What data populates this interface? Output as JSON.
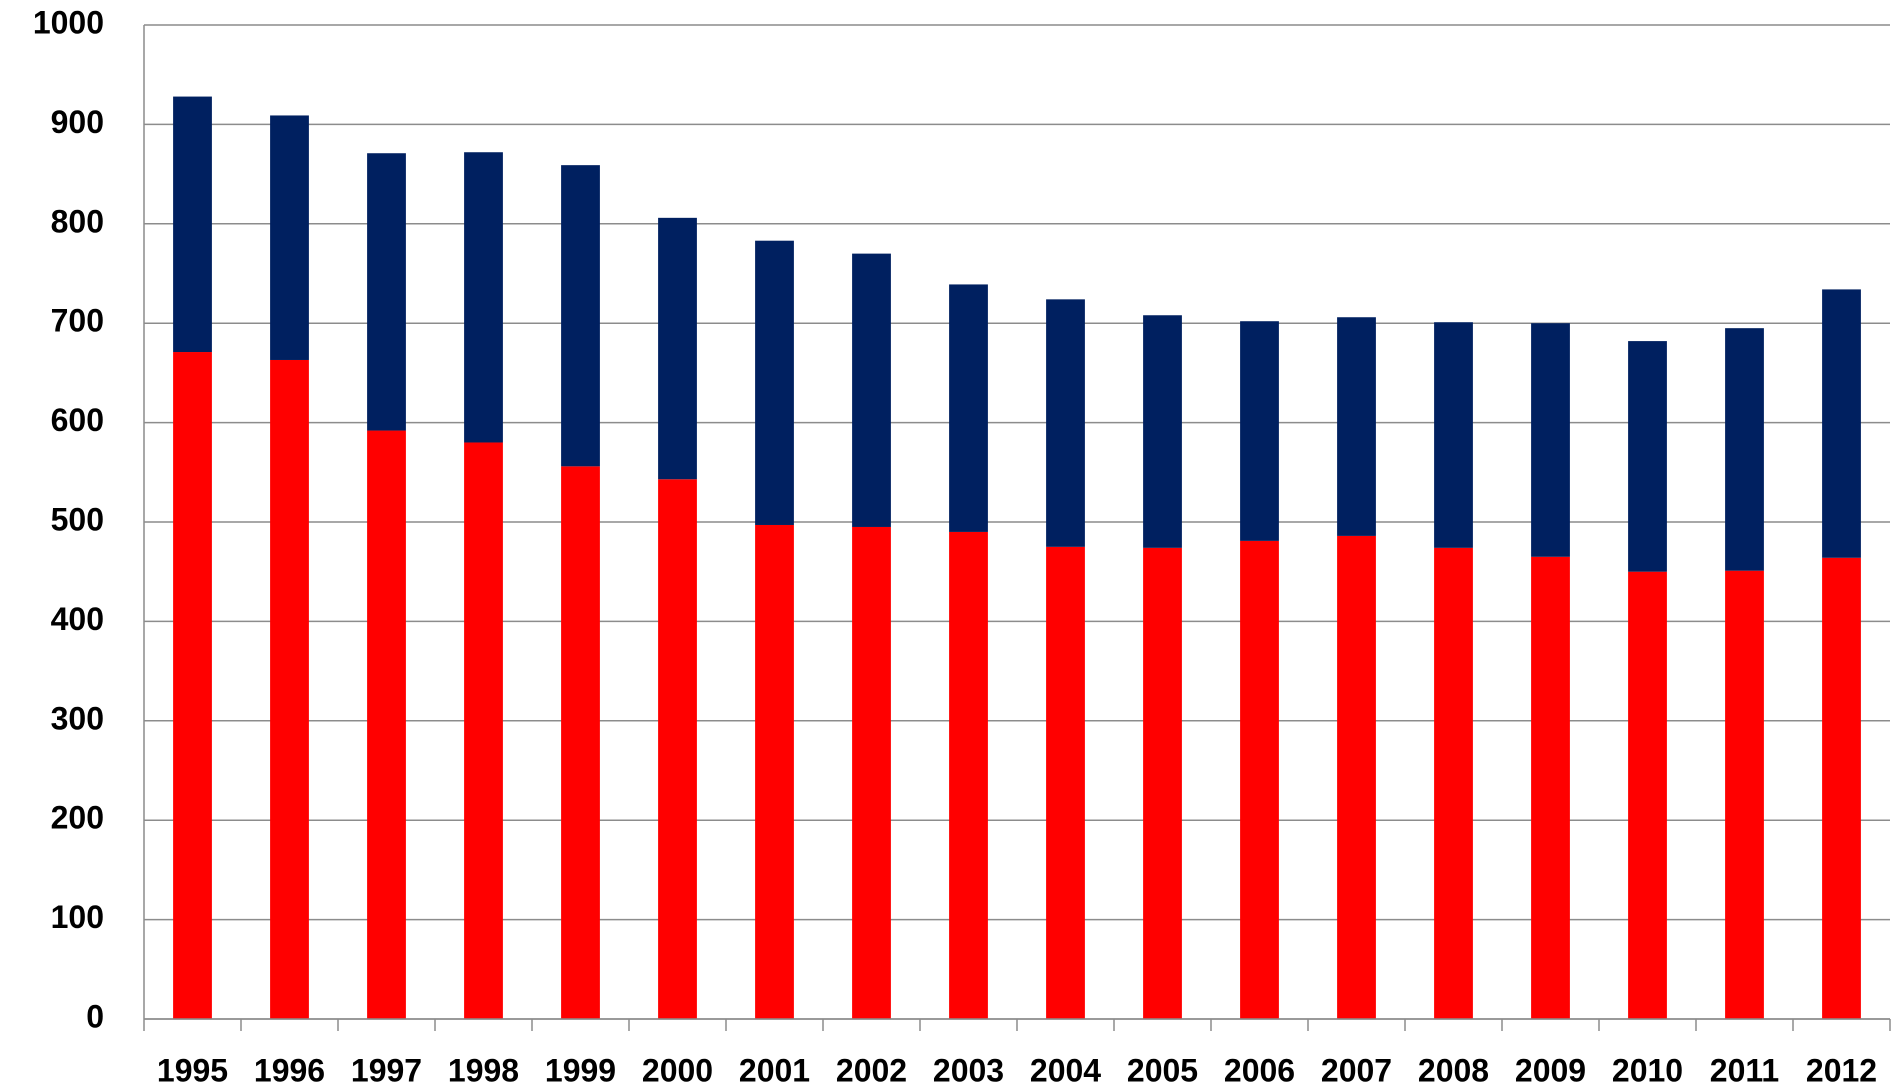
{
  "chart_data": {
    "type": "stacked_bar",
    "categories": [
      "1995",
      "1996",
      "1997",
      "1998",
      "1999",
      "2000",
      "2001",
      "2002",
      "2003",
      "2004",
      "2005",
      "2006",
      "2007",
      "2008",
      "2009",
      "2010",
      "2011",
      "2012"
    ],
    "series": [
      {
        "color": "#ff0000",
        "values": [
          671,
          663,
          592,
          580,
          556,
          543,
          497,
          495,
          490,
          475,
          474,
          481,
          486,
          474,
          465,
          450,
          451,
          464
        ]
      },
      {
        "color": "#002060",
        "values": [
          257,
          246,
          279,
          292,
          303,
          263,
          286,
          275,
          249,
          249,
          234,
          221,
          220,
          227,
          235,
          232,
          244,
          270
        ]
      }
    ],
    "ylim": [
      0,
      1000
    ],
    "yticks": [
      0,
      100,
      200,
      300,
      400,
      500,
      600,
      700,
      800,
      900,
      1000
    ],
    "grid": true
  }
}
